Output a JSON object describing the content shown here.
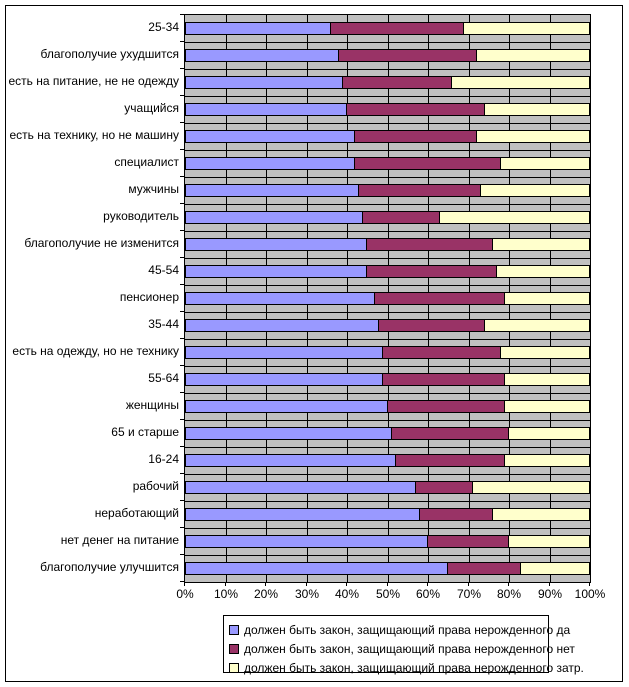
{
  "chart_data": {
    "type": "bar",
    "orientation": "horizontal",
    "stacked": true,
    "title": "",
    "xlabel": "",
    "ylabel": "",
    "xlim": [
      0,
      100
    ],
    "x_tick_labels": [
      "0%",
      "10%",
      "20%",
      "30%",
      "40%",
      "50%",
      "60%",
      "70%",
      "80%",
      "90%",
      "100%"
    ],
    "grid": true,
    "plot_background_color": "#c0c0c0",
    "gridline_color": "#000000",
    "legend_position": "bottom",
    "categories": [
      "25-34",
      "благополучие ухудшится",
      "есть на питание, не не одежду",
      "учащийся",
      "есть на технику, но не машину",
      "специалист",
      "мужчины",
      "руководитель",
      "благополучие не изменится",
      "45-54",
      "пенсионер",
      "35-44",
      "есть на одежду, но не технику",
      "55-64",
      "женщины",
      "65 и старше",
      "16-24",
      "рабочий",
      "неработающий",
      "нет денег на питание",
      "благополучие улучшится"
    ],
    "series": [
      {
        "name": "должен быть закон, защищающий права нерожденного да",
        "color": "#9999ff",
        "values": [
          36,
          38,
          39,
          40,
          42,
          42,
          43,
          44,
          45,
          45,
          47,
          48,
          49,
          49,
          50,
          51,
          52,
          57,
          58,
          60,
          65
        ]
      },
      {
        "name": "должен быть закон, защищающий права нерожденного нет",
        "color": "#993366",
        "values": [
          33,
          34,
          27,
          34,
          30,
          36,
          30,
          19,
          31,
          32,
          32,
          26,
          29,
          30,
          29,
          29,
          27,
          14,
          18,
          20,
          18
        ]
      },
      {
        "name": "должен быть закон, защищающий права нерожденного затр.",
        "color": "#ffffcc",
        "values": [
          31,
          28,
          34,
          26,
          28,
          22,
          27,
          37,
          24,
          23,
          21,
          26,
          22,
          21,
          21,
          20,
          21,
          29,
          24,
          20,
          17
        ]
      }
    ]
  }
}
